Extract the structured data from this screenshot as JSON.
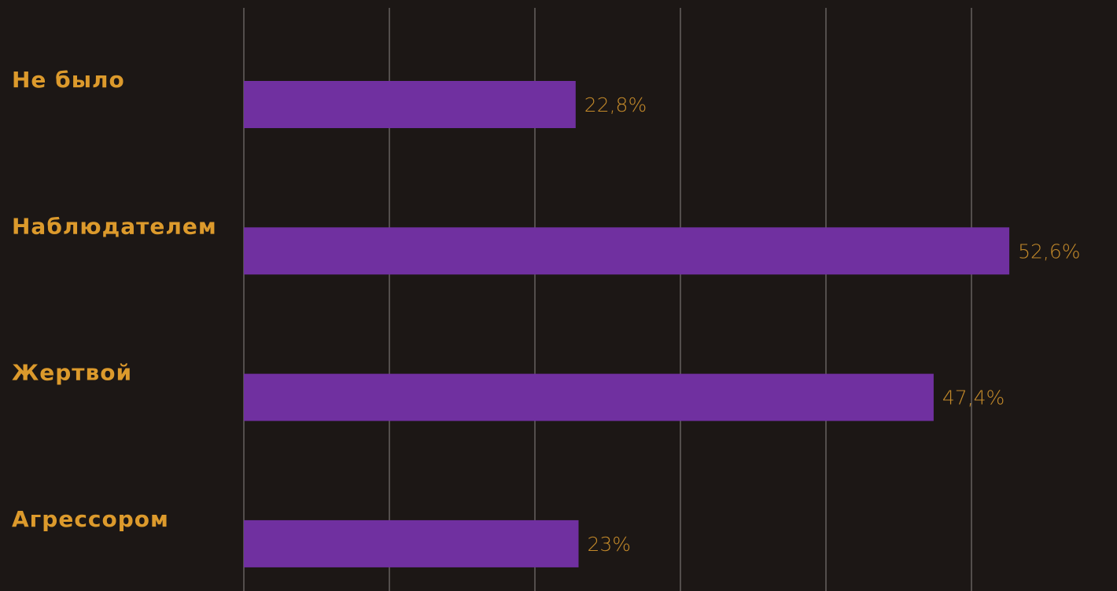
{
  "chart_data": {
    "type": "bar",
    "orientation": "horizontal",
    "categories": [
      "Не было",
      "Наблюдателем",
      "Жертвой",
      "Агрессором"
    ],
    "values": [
      22.8,
      52.6,
      47.4,
      23
    ],
    "value_labels": [
      "22,8%",
      "52,6%",
      "47,4%",
      "23%"
    ],
    "color": "#7030a0",
    "xlim": [
      0,
      60
    ],
    "xticks": [
      0,
      10,
      20,
      30,
      40,
      50
    ],
    "grid": true
  }
}
